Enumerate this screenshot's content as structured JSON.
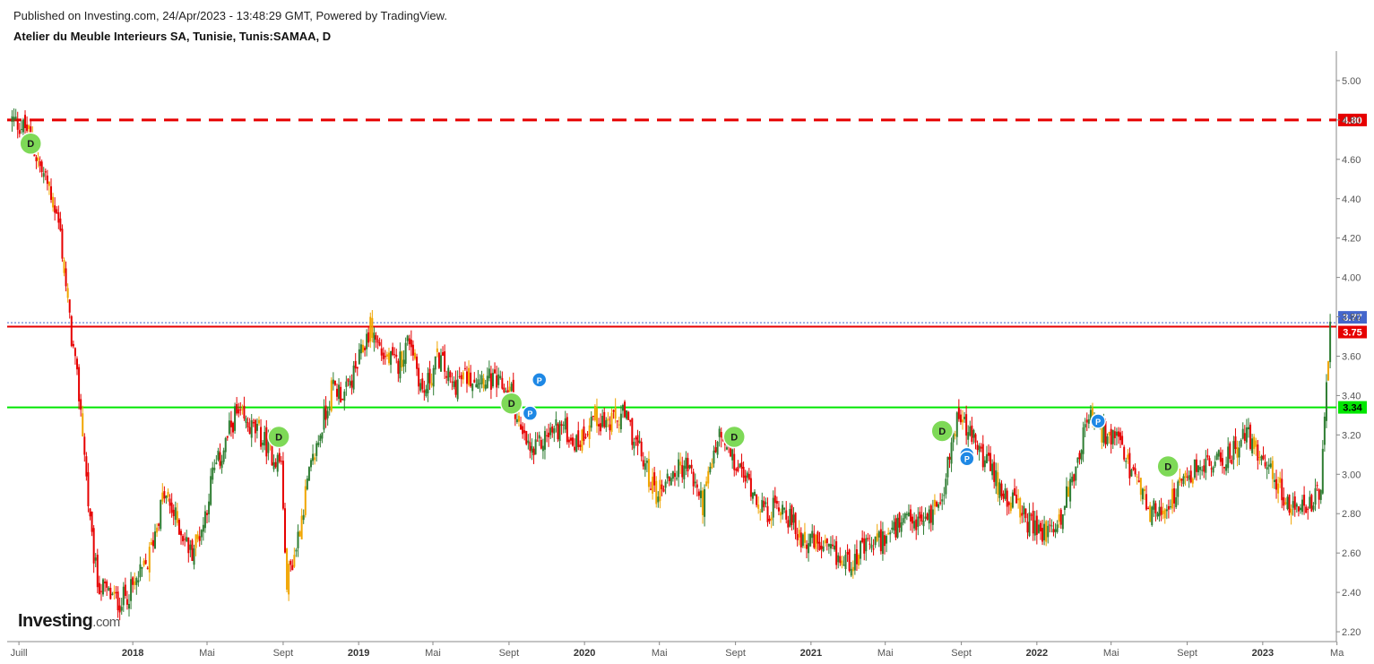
{
  "header": {
    "published": "Published on Investing.com, 24/Apr/2023 - 13:48:29 GMT, Powered by TradingView.",
    "title": "Atelier du Meuble Interieurs SA, Tunisie, Tunis:SAMAA, D"
  },
  "brand": {
    "name": "Investing",
    "suffix": ".com"
  },
  "colors": {
    "up": "#2e7d32",
    "down": "#e60000",
    "neutral": "#f0a500",
    "resistance": "#e60000",
    "support": "#00e600",
    "last_price": "#4466cc",
    "badge_d": "#7ed957",
    "badge_p": "#1e88e5",
    "axis_text": "#555555"
  },
  "chart_data": {
    "type": "candlestick",
    "title": "Atelier du Meuble Interieurs SA, Tunisie, Tunis:SAMAA, D",
    "ylim": [
      2.15,
      5.15
    ],
    "y_ticks": [
      "5.00",
      "4.80",
      "4.60",
      "4.40",
      "4.20",
      "4.00",
      "3.80",
      "3.60",
      "3.40",
      "3.20",
      "3.00",
      "2.80",
      "2.60",
      "2.40",
      "2.20"
    ],
    "x_ticks": [
      "Juill",
      "2018",
      "Mai",
      "Sept",
      "2019",
      "Mai",
      "Sept",
      "2020",
      "Mai",
      "Sept",
      "2021",
      "Mai",
      "Sept",
      "2022",
      "Mai",
      "Sept",
      "2023",
      "Ma"
    ],
    "x_tick_dates": [
      "2017-07",
      "2018-01",
      "2018-05",
      "2018-09",
      "2019-01",
      "2019-05",
      "2019-09",
      "2020-01",
      "2020-05",
      "2020-09",
      "2021-01",
      "2021-05",
      "2021-09",
      "2022-01",
      "2022-05",
      "2022-09",
      "2023-01",
      "2023-05"
    ],
    "xlim": [
      "2017-06-12",
      "2023-04-30"
    ],
    "horizontal_lines": [
      {
        "value": 4.8,
        "label": "4.80",
        "style": "dashed",
        "color": "#e60000"
      },
      {
        "value": 3.75,
        "label": "3.75",
        "style": "solid",
        "color": "#e60000"
      },
      {
        "value": 3.34,
        "label": "3.34",
        "style": "solid",
        "color": "#00e600"
      },
      {
        "value": 3.77,
        "label": "3.77",
        "style": "dotted",
        "color": "#4466cc"
      }
    ],
    "last_price": 3.77,
    "close_approx": {
      "dates": [
        "2017-06-20",
        "2017-07-15",
        "2017-08-05",
        "2017-08-20",
        "2017-09-05",
        "2017-09-20",
        "2017-10-10",
        "2017-10-25",
        "2017-11-05",
        "2017-11-20",
        "2017-12-10",
        "2018-01-01",
        "2018-01-25",
        "2018-02-20",
        "2018-03-15",
        "2018-04-05",
        "2018-04-25",
        "2018-05-10",
        "2018-05-25",
        "2018-06-15",
        "2018-07-05",
        "2018-07-25",
        "2018-08-15",
        "2018-08-30",
        "2018-09-05",
        "2018-09-20",
        "2018-10-10",
        "2018-10-30",
        "2018-11-20",
        "2018-12-10",
        "2018-12-30",
        "2019-01-20",
        "2019-02-10",
        "2019-03-05",
        "2019-03-25",
        "2019-04-15",
        "2019-05-10",
        "2019-06-01",
        "2019-06-25",
        "2019-07-20",
        "2019-08-15",
        "2019-09-05",
        "2019-09-20",
        "2019-10-10",
        "2019-11-01",
        "2019-11-25",
        "2019-12-20",
        "2020-01-15",
        "2020-02-10",
        "2020-03-05",
        "2020-04-01",
        "2020-04-25",
        "2020-05-20",
        "2020-06-15",
        "2020-07-10",
        "2020-08-05",
        "2020-08-30",
        "2020-09-25",
        "2020-10-20",
        "2020-11-15",
        "2020-12-10",
        "2021-01-05",
        "2021-01-30",
        "2021-02-25",
        "2021-03-20",
        "2021-04-15",
        "2021-05-10",
        "2021-06-05",
        "2021-06-25",
        "2021-07-15",
        "2021-08-05",
        "2021-08-25",
        "2021-09-15",
        "2021-10-05",
        "2021-10-30",
        "2021-11-25",
        "2021-12-20",
        "2022-01-10",
        "2022-02-05",
        "2022-03-01",
        "2022-03-25",
        "2022-04-20",
        "2022-05-15",
        "2022-06-10",
        "2022-07-05",
        "2022-08-01",
        "2022-08-25",
        "2022-09-20",
        "2022-10-15",
        "2022-11-10",
        "2022-12-05",
        "2022-12-30",
        "2023-01-25",
        "2023-02-20",
        "2023-03-15",
        "2023-04-05",
        "2023-04-20"
      ],
      "close": [
        4.8,
        4.75,
        4.55,
        4.45,
        4.25,
        3.8,
        3.3,
        2.7,
        2.45,
        2.4,
        2.35,
        2.42,
        2.55,
        2.9,
        2.75,
        2.6,
        2.75,
        3.0,
        3.1,
        3.3,
        3.25,
        3.2,
        3.1,
        3.05,
        2.45,
        2.6,
        2.95,
        3.2,
        3.45,
        3.4,
        3.55,
        3.75,
        3.6,
        3.55,
        3.7,
        3.4,
        3.6,
        3.45,
        3.5,
        3.5,
        3.45,
        3.42,
        3.2,
        3.1,
        3.2,
        3.25,
        3.15,
        3.3,
        3.25,
        3.3,
        3.1,
        2.9,
        3.0,
        3.05,
        2.85,
        3.2,
        3.05,
        2.95,
        2.8,
        2.85,
        2.7,
        2.65,
        2.6,
        2.55,
        2.6,
        2.65,
        2.7,
        2.75,
        2.75,
        2.8,
        2.95,
        3.3,
        3.2,
        3.1,
        2.95,
        2.85,
        2.75,
        2.7,
        2.75,
        3.0,
        3.3,
        3.2,
        3.15,
        2.95,
        2.8,
        2.85,
        2.95,
        3.05,
        3.05,
        3.1,
        3.2,
        3.1,
        2.95,
        2.8,
        2.85,
        2.9,
        3.77
      ]
    },
    "event_markers": [
      {
        "type": "D",
        "date": "2017-07-20",
        "value": 4.68
      },
      {
        "type": "D",
        "date": "2018-08-25",
        "value": 3.19
      },
      {
        "type": "D",
        "date": "2019-09-05",
        "value": 3.36
      },
      {
        "type": "P",
        "date": "2019-10-20",
        "value": 3.48
      },
      {
        "type": "P",
        "date": "2019-10-05",
        "value": 3.31
      },
      {
        "type": "D",
        "date": "2020-08-30",
        "value": 3.19
      },
      {
        "type": "D",
        "date": "2021-08-01",
        "value": 3.22
      },
      {
        "type": "P",
        "date": "2021-09-10",
        "value": 3.1
      },
      {
        "type": "P",
        "date": "2021-09-10",
        "value": 3.08
      },
      {
        "type": "P",
        "date": "2022-04-10",
        "value": 3.27
      },
      {
        "type": "D",
        "date": "2022-08-01",
        "value": 3.04
      }
    ]
  }
}
